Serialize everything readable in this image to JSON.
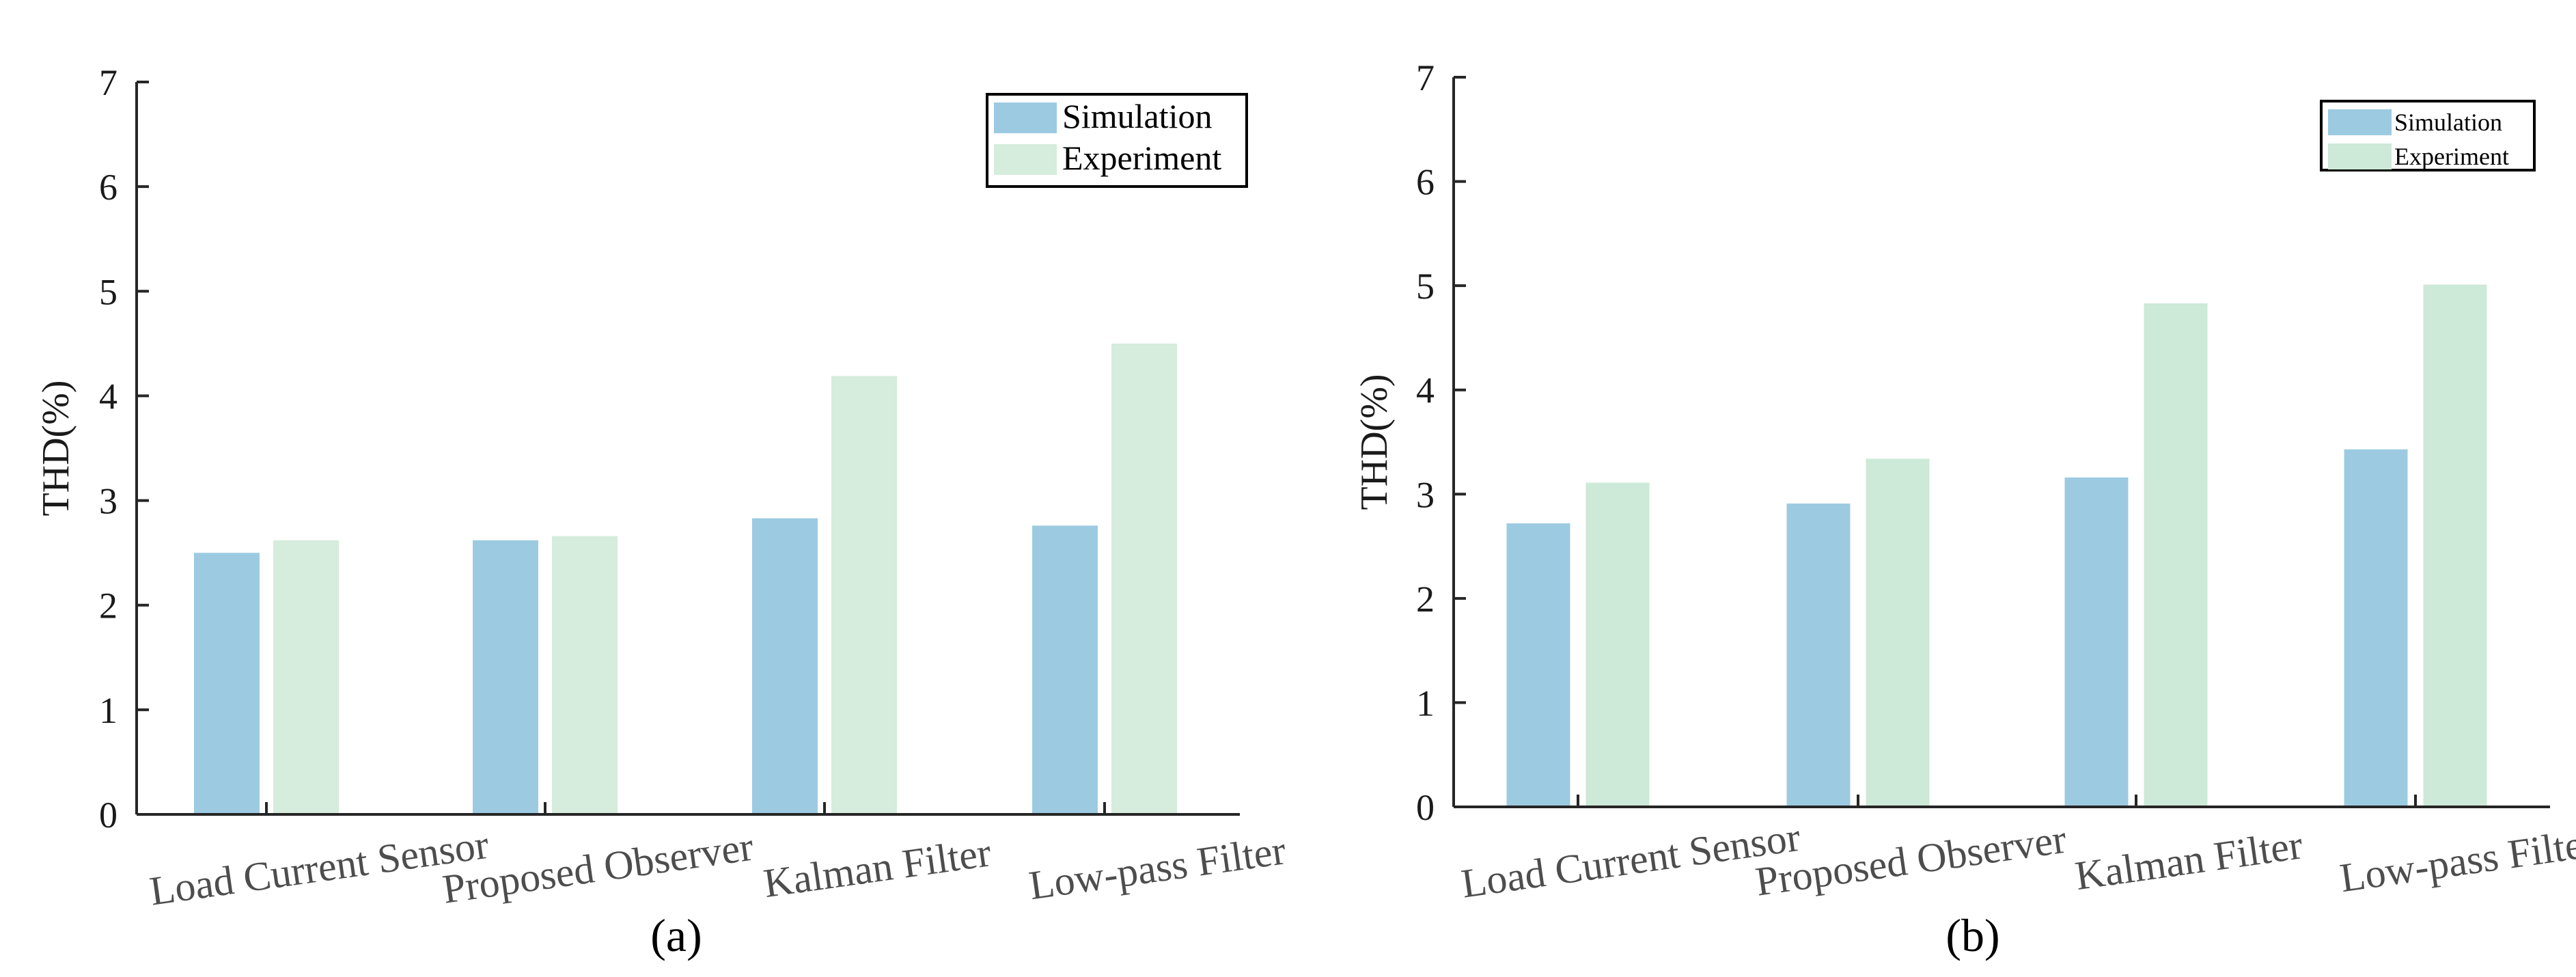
{
  "chart_data": [
    {
      "type": "bar",
      "caption": "(a)",
      "ylabel": "THD(%)",
      "xlabel": "",
      "ylim": [
        0,
        7
      ],
      "yticks": [
        0,
        1,
        2,
        3,
        4,
        5,
        6,
        7
      ],
      "categories": [
        "Load Current Sensor",
        "Proposed Observer",
        "Kalman Filter",
        "Low-pass Filter"
      ],
      "series": [
        {
          "name": "Simulation",
          "values": [
            2.5,
            2.62,
            2.83,
            2.76
          ],
          "color": "#9ccbe1"
        },
        {
          "name": "Experiment",
          "values": [
            2.62,
            2.66,
            4.19,
            4.5
          ],
          "color": "#d6ecdc"
        }
      ],
      "legend": "top-right",
      "grid": false
    },
    {
      "type": "bar",
      "caption": "(b)",
      "ylabel": "THD(%)",
      "xlabel": "",
      "ylim": [
        0,
        7
      ],
      "yticks": [
        0,
        1,
        2,
        3,
        4,
        5,
        6,
        7
      ],
      "categories": [
        "Load Current Sensor",
        "Proposed Observer",
        "Kalman Filter",
        "Low-pass Filter"
      ],
      "series": [
        {
          "name": "Simulation",
          "values": [
            2.72,
            2.91,
            3.16,
            3.43
          ],
          "color": "#9ccbe1"
        },
        {
          "name": "Experiment",
          "values": [
            3.11,
            3.34,
            4.83,
            5.01
          ],
          "color": "#cde9d7"
        }
      ],
      "legend": "top-right",
      "grid": false
    }
  ]
}
